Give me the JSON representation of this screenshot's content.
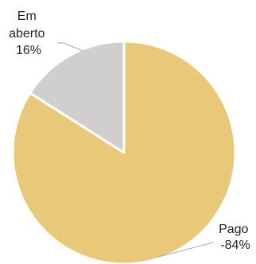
{
  "chart_data": {
    "type": "pie",
    "slices": [
      {
        "label_lines": [
          "Pago",
          "-84%"
        ],
        "value": 84,
        "color": "#E8C879"
      },
      {
        "label_lines": [
          "Em",
          "aberto",
          "16%"
        ],
        "value": 16,
        "color": "#D0CECE"
      }
    ],
    "start_angle_deg": 0,
    "direction": "clockwise",
    "slice_border_color": "#FFFFFF",
    "leader_line_color": "#A6A6A6",
    "legend": "none"
  }
}
